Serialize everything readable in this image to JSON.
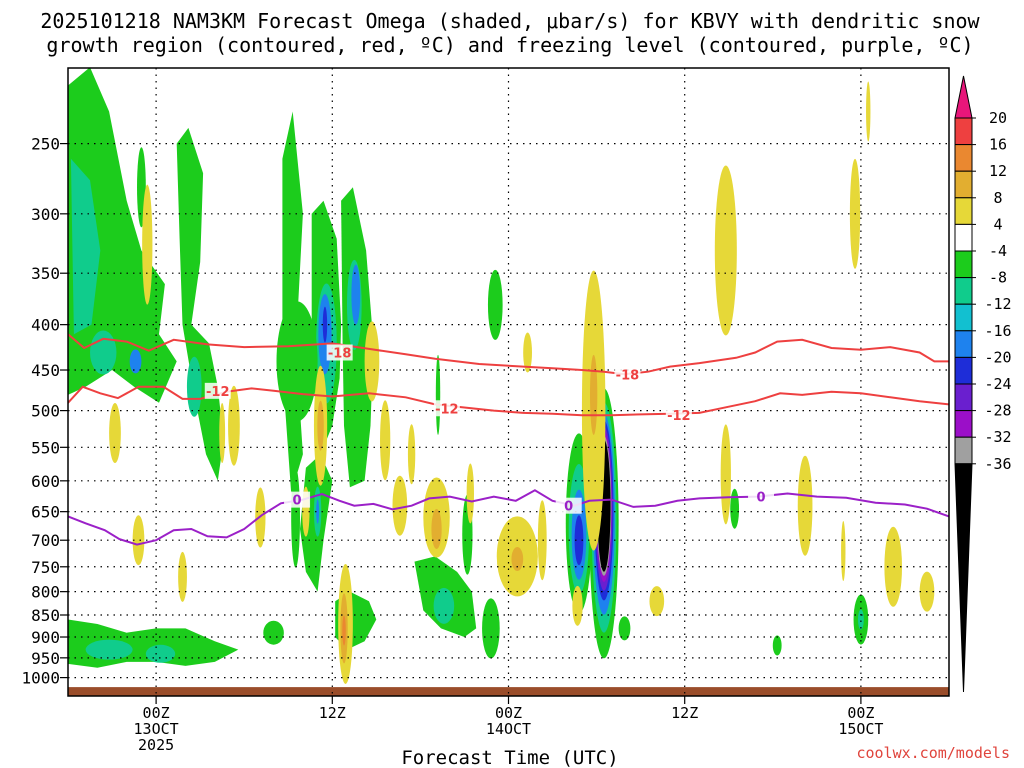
{
  "title_line1": "2025101218 NAM3KM Forecast Omega (shaded, μbar/s) for KBVY with dendritic snow",
  "title_line2": "growth region (contoured, red, ºC) and freezing level (contoured, purple, ºC)",
  "credit": "coolwx.com/models",
  "chart_data": {
    "type": "heatmap",
    "title": "2025101218 NAM3KM Forecast Omega (shaded, μbar/s) for KBVY with dendritic snow growth region (contoured, red, ºC) and freezing level (contoured, purple, ºC)",
    "xlabel": "Forecast Time (UTC)",
    "ylabel": "",
    "x_range_hours": [
      -6,
      54
    ],
    "x_ticks": [
      {
        "hour": 0,
        "lines": [
          "00Z",
          "13OCT",
          "2025"
        ]
      },
      {
        "hour": 12,
        "lines": [
          "12Z"
        ]
      },
      {
        "hour": 24,
        "lines": [
          "00Z",
          "14OCT"
        ]
      },
      {
        "hour": 36,
        "lines": [
          "12Z"
        ]
      },
      {
        "hour": 48,
        "lines": [
          "00Z",
          "15OCT"
        ]
      }
    ],
    "y_ticks": [
      250,
      300,
      350,
      400,
      450,
      500,
      550,
      600,
      650,
      700,
      750,
      800,
      850,
      900,
      950,
      1000
    ],
    "y_range_hpa": [
      1025,
      200
    ],
    "colorbar": {
      "levels": [
        -36,
        -32,
        -28,
        -24,
        -20,
        -16,
        -12,
        -8,
        -4,
        4,
        8,
        12,
        16,
        20
      ],
      "labels": [
        "20",
        "16",
        "12",
        "8",
        "4",
        "-4",
        "-8",
        "-12",
        "-16",
        "-20",
        "-24",
        "-28",
        "-32",
        "-36"
      ],
      "bins": [
        {
          "range": "<-36",
          "color": "#000000"
        },
        {
          "range": "-36..-32",
          "color": "#a0a0a0"
        },
        {
          "range": "-32..-28",
          "color": "#9b0fc8"
        },
        {
          "range": "-28..-24",
          "color": "#6a1fcf"
        },
        {
          "range": "-24..-20",
          "color": "#1e2dd8"
        },
        {
          "range": "-20..-16",
          "color": "#1e82ee"
        },
        {
          "range": "-16..-12",
          "color": "#12c0d0"
        },
        {
          "range": "-12..-8",
          "color": "#10cc8c"
        },
        {
          "range": "-8..-4",
          "color": "#1ccc1c"
        },
        {
          "range": "-4..4",
          "color": "#ffffff"
        },
        {
          "range": "4..8",
          "color": "#e6d838"
        },
        {
          "range": "8..12",
          "color": "#e2ae30"
        },
        {
          "range": "12..16",
          "color": "#ea8830"
        },
        {
          "range": "16..20",
          "color": "#ee4040"
        },
        {
          "range": ">20",
          "color": "#e8167a"
        }
      ]
    },
    "contours": [
      {
        "name": "-18 ºC",
        "label": "-18",
        "color": "#ee4040",
        "points": [
          [
            -6,
            410
          ],
          [
            -4.9,
            425
          ],
          [
            -3.6,
            415
          ],
          [
            -2,
            418
          ],
          [
            -0.5,
            428
          ],
          [
            1.2,
            416
          ],
          [
            3.5,
            421
          ],
          [
            6,
            424
          ],
          [
            9,
            423
          ],
          [
            12,
            420
          ],
          [
            14.5,
            426
          ],
          [
            17,
            432
          ],
          [
            19,
            437
          ],
          [
            22,
            443
          ],
          [
            25,
            446
          ],
          [
            27,
            448
          ],
          [
            29,
            450
          ],
          [
            30.5,
            452
          ],
          [
            31.9,
            455
          ],
          [
            33.5,
            452
          ],
          [
            35,
            446
          ],
          [
            37,
            442
          ],
          [
            39.5,
            436
          ],
          [
            40.8,
            430
          ],
          [
            42.3,
            418
          ],
          [
            44,
            416
          ],
          [
            46,
            425
          ],
          [
            48,
            427
          ],
          [
            50,
            424
          ],
          [
            52,
            430
          ],
          [
            53,
            440
          ],
          [
            54,
            440
          ]
        ]
      },
      {
        "name": "-12 ºC",
        "label": "-12",
        "color": "#ee4040",
        "points": [
          [
            -6,
            490
          ],
          [
            -5,
            470
          ],
          [
            -3.8,
            478
          ],
          [
            -2.6,
            484
          ],
          [
            -1.2,
            470
          ],
          [
            0.5,
            470
          ],
          [
            1.8,
            485
          ],
          [
            3,
            485
          ],
          [
            4.8,
            476
          ],
          [
            6.5,
            472
          ],
          [
            8,
            475
          ],
          [
            10,
            479
          ],
          [
            12,
            482
          ],
          [
            14.5,
            478
          ],
          [
            17,
            483
          ],
          [
            19,
            492
          ],
          [
            21,
            496
          ],
          [
            23,
            500
          ],
          [
            25,
            503
          ],
          [
            27,
            504
          ],
          [
            29,
            506
          ],
          [
            31,
            506
          ],
          [
            33,
            505
          ],
          [
            35,
            504
          ],
          [
            37,
            503
          ],
          [
            39,
            495
          ],
          [
            40.8,
            488
          ],
          [
            42.5,
            478
          ],
          [
            44,
            480
          ],
          [
            46,
            476
          ],
          [
            48,
            478
          ],
          [
            50,
            483
          ],
          [
            52,
            488
          ],
          [
            54,
            492
          ]
        ]
      },
      {
        "name": "0 ºC",
        "label": "0",
        "color": "#9b20c8",
        "points": [
          [
            -6,
            658
          ],
          [
            -4.8,
            670
          ],
          [
            -3.5,
            682
          ],
          [
            -2.5,
            698
          ],
          [
            -1.3,
            708
          ],
          [
            0,
            700
          ],
          [
            1.2,
            682
          ],
          [
            2.4,
            680
          ],
          [
            3.5,
            693
          ],
          [
            4.8,
            695
          ],
          [
            6,
            680
          ],
          [
            7.2,
            656
          ],
          [
            8.5,
            636
          ],
          [
            10,
            630
          ],
          [
            11.3,
            621
          ],
          [
            12.5,
            632
          ],
          [
            13.5,
            640
          ],
          [
            14.8,
            637
          ],
          [
            16.1,
            646
          ],
          [
            17.4,
            640
          ],
          [
            18.6,
            628
          ],
          [
            20,
            625
          ],
          [
            21.5,
            633
          ],
          [
            23,
            625
          ],
          [
            24.5,
            632
          ],
          [
            25.8,
            615
          ],
          [
            27,
            632
          ],
          [
            28.5,
            640
          ],
          [
            29.5,
            632
          ],
          [
            31,
            630
          ],
          [
            32.5,
            642
          ],
          [
            34,
            640
          ],
          [
            35.5,
            632
          ],
          [
            37,
            628
          ],
          [
            39,
            626
          ],
          [
            41,
            625
          ],
          [
            43,
            620
          ],
          [
            45,
            625
          ],
          [
            47,
            627
          ],
          [
            49,
            635
          ],
          [
            51,
            638
          ],
          [
            52.5,
            645
          ],
          [
            54,
            658
          ]
        ]
      }
    ],
    "contour_labels": [
      {
        "text": "-18",
        "hour": 12.5,
        "hpa": 430,
        "color": "#ee4040"
      },
      {
        "text": "-18",
        "hour": 32.1,
        "hpa": 455,
        "color": "#ee4040"
      },
      {
        "text": "-12",
        "hour": 4.2,
        "hpa": 475,
        "color": "#ee4040"
      },
      {
        "text": "-12",
        "hour": 19.8,
        "hpa": 497,
        "color": "#ee4040"
      },
      {
        "text": "-12",
        "hour": 35.6,
        "hpa": 506,
        "color": "#ee4040"
      },
      {
        "text": "0",
        "hour": 9.6,
        "hpa": 630,
        "color": "#9b20c8"
      },
      {
        "text": "0",
        "hour": 28.1,
        "hpa": 640,
        "color": "#9b20c8"
      },
      {
        "text": "0",
        "hour": 41.2,
        "hpa": 625,
        "color": "#9b20c8"
      }
    ],
    "features": [
      {
        "kind": "omega-blob",
        "hour": 7.2,
        "hpa": 900,
        "value": -6
      },
      {
        "kind": "omega-blob",
        "hour": 11.6,
        "hpa": 450,
        "value": -6
      },
      {
        "kind": "omega-blob",
        "hour": 13.0,
        "hpa": 380,
        "value": -6
      },
      {
        "kind": "omega-blob",
        "hour": 30.0,
        "hpa": 640,
        "value": -36
      },
      {
        "kind": "omega-blob",
        "hour": 29.8,
        "hpa": 500,
        "value": 6
      },
      {
        "kind": "omega-blob",
        "hour": 12.0,
        "hpa": 890,
        "value": 10
      },
      {
        "kind": "omega-blob",
        "hour": 38.8,
        "hpa": 330,
        "value": 6
      },
      {
        "kind": "omega-blob",
        "hour": 48.0,
        "hpa": 860,
        "value": -10
      }
    ]
  }
}
